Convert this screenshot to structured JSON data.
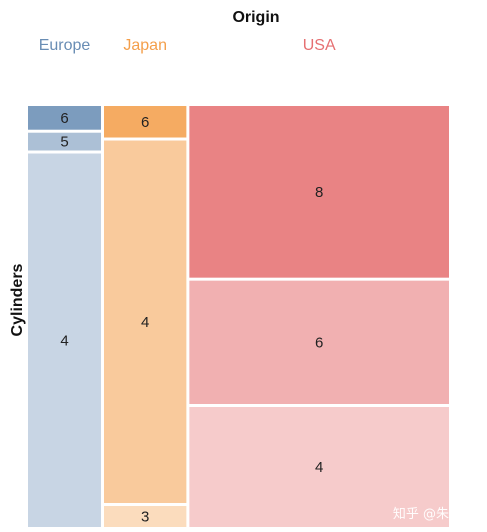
{
  "chart_data": {
    "type": "mosaic",
    "column_variable": "Origin",
    "row_variable": "Cylinders",
    "columns": [
      {
        "name": "Europe",
        "total": 70,
        "color": "#4e79a7",
        "segments": [
          {
            "label": "6",
            "count": 4
          },
          {
            "label": "5",
            "count": 3
          },
          {
            "label": "4",
            "count": 63
          }
        ]
      },
      {
        "name": "Japan",
        "total": 79,
        "color": "#f28e2b",
        "segments": [
          {
            "label": "6",
            "count": 6
          },
          {
            "label": "4",
            "count": 69
          },
          {
            "label": "3",
            "count": 4
          }
        ]
      },
      {
        "name": "USA",
        "total": 249,
        "color": "#e15759",
        "segments": [
          {
            "label": "8",
            "count": 103
          },
          {
            "label": "6",
            "count": 74
          },
          {
            "label": "4",
            "count": 72
          }
        ]
      }
    ]
  },
  "watermark": "知乎 @朱卫军"
}
